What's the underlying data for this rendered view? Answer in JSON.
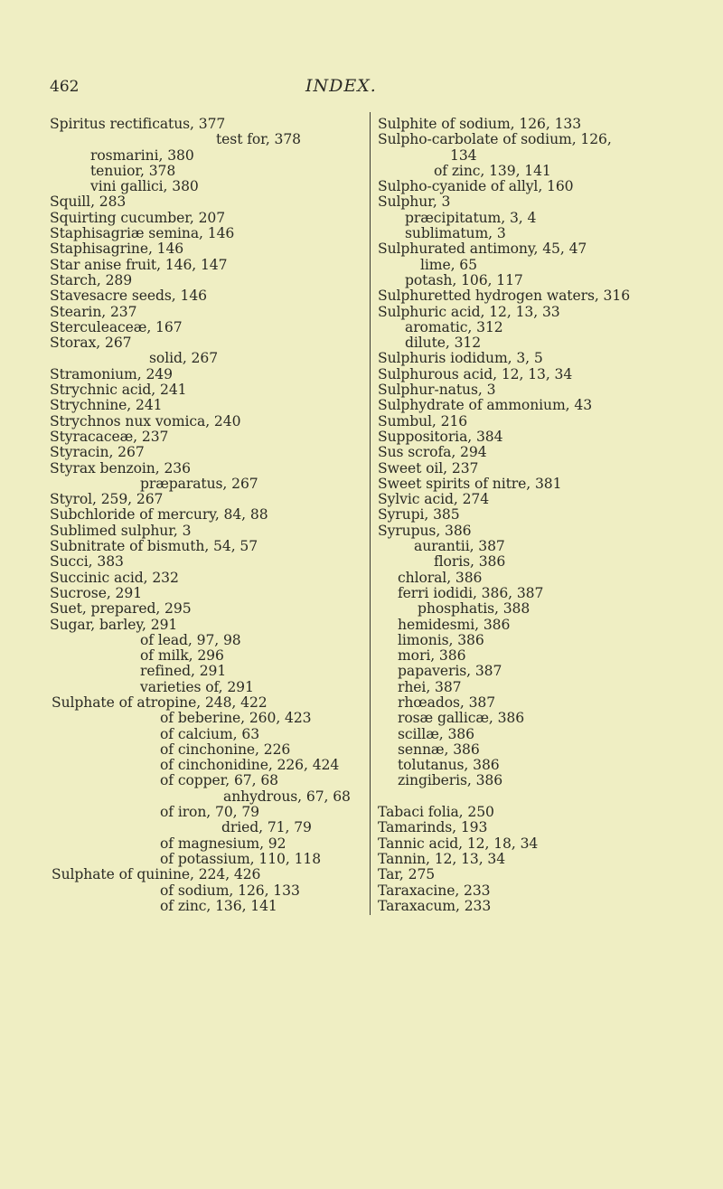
{
  "header": {
    "page_number": "462",
    "title": "INDEX."
  },
  "left_column": [
    "Spiritus rectificatus, 377",
    "test for, 378",
    "rosmarini, 380",
    "tenuior, 378",
    "vini gallici, 380",
    "Squill, 283",
    "Squirting cucumber, 207",
    "Staphisagriæ semina, 146",
    "Staphisagrine, 146",
    "Star anise fruit, 146, 147",
    "Starch, 289",
    "Stavesacre seeds, 146",
    "Stearin, 237",
    "Sterculeaceæ, 167",
    "Storax, 267",
    "solid, 267",
    "Stramonium, 249",
    "Strychnic acid, 241",
    "Strychnine, 241",
    "Strychnos nux vomica, 240",
    "Styracaceæ, 237",
    "Styracin, 267",
    "Styrax benzoin, 236",
    "præparatus, 267",
    "Styrol, 259, 267",
    "Subchloride of mercury, 84, 88",
    "Sublimed sulphur, 3",
    "Subnitrate of bismuth, 54, 57",
    "Succi, 383",
    "Succinic acid, 232",
    "Sucrose, 291",
    "Suet, prepared, 295",
    "Sugar, barley, 291",
    "of lead, 97, 98",
    "of milk, 296",
    "refined, 291",
    "varieties of, 291",
    "Sulphate of atropine, 248, 422",
    "of beberine, 260, 423",
    "of calcium, 63",
    "of cinchonine, 226",
    "of cinchonidine, 226, 424",
    "of copper, 67, 68",
    "anhydrous, 67, 68",
    "of iron, 70, 79",
    "dried, 71, 79",
    "of magnesium, 92",
    "of potassium, 110, 118",
    "Sulphate of quinine, 224, 426",
    "of sodium, 126, 133",
    "of zinc, 136, 141"
  ],
  "right_column": [
    "Sulphite of sodium, 126, 133",
    "Sulpho-carbolate of sodium, 126,",
    "134",
    "of zinc, 139, 141",
    "Sulpho-cyanide of allyl, 160",
    "Sulphur, 3",
    "præcipitatum, 3, 4",
    "sublimatum, 3",
    "Sulphurated antimony, 45, 47",
    "lime, 65",
    "potash, 106, 117",
    "Sulphuretted hydrogen waters, 316",
    "Sulphuric acid, 12, 13, 33",
    "aromatic, 312",
    "dilute, 312",
    "Sulphuris iodidum, 3, 5",
    "Sulphurous acid, 12, 13, 34",
    "Sulphur-natus, 3",
    "Sulphydrate of ammonium, 43",
    "Sumbul, 216",
    "Suppositoria, 384",
    "Sus scrofa, 294",
    "Sweet oil, 237",
    "Sweet spirits of nitre, 381",
    "Sylvic acid, 274",
    "Syrupi, 385",
    "Syrupus, 386",
    "aurantii, 387",
    "floris, 386",
    "chloral, 386",
    "ferri iodidi, 386, 387",
    "phosphatis, 388",
    "hemidesmi, 386",
    "limonis, 386",
    "mori, 386",
    "papaveris, 387",
    "rhei, 387",
    "rhœados, 387",
    "rosæ gallicæ, 386",
    "scillæ, 386",
    "sennæ, 386",
    "tolutanus, 386",
    "zingiberis, 386",
    "",
    "Tabaci folia, 250",
    "Tamarinds, 193",
    "Tannic acid, 12, 18, 34",
    "Tannin, 12, 13, 34",
    "Tar, 275",
    "Taraxacine, 233",
    "Taraxacum, 233"
  ]
}
